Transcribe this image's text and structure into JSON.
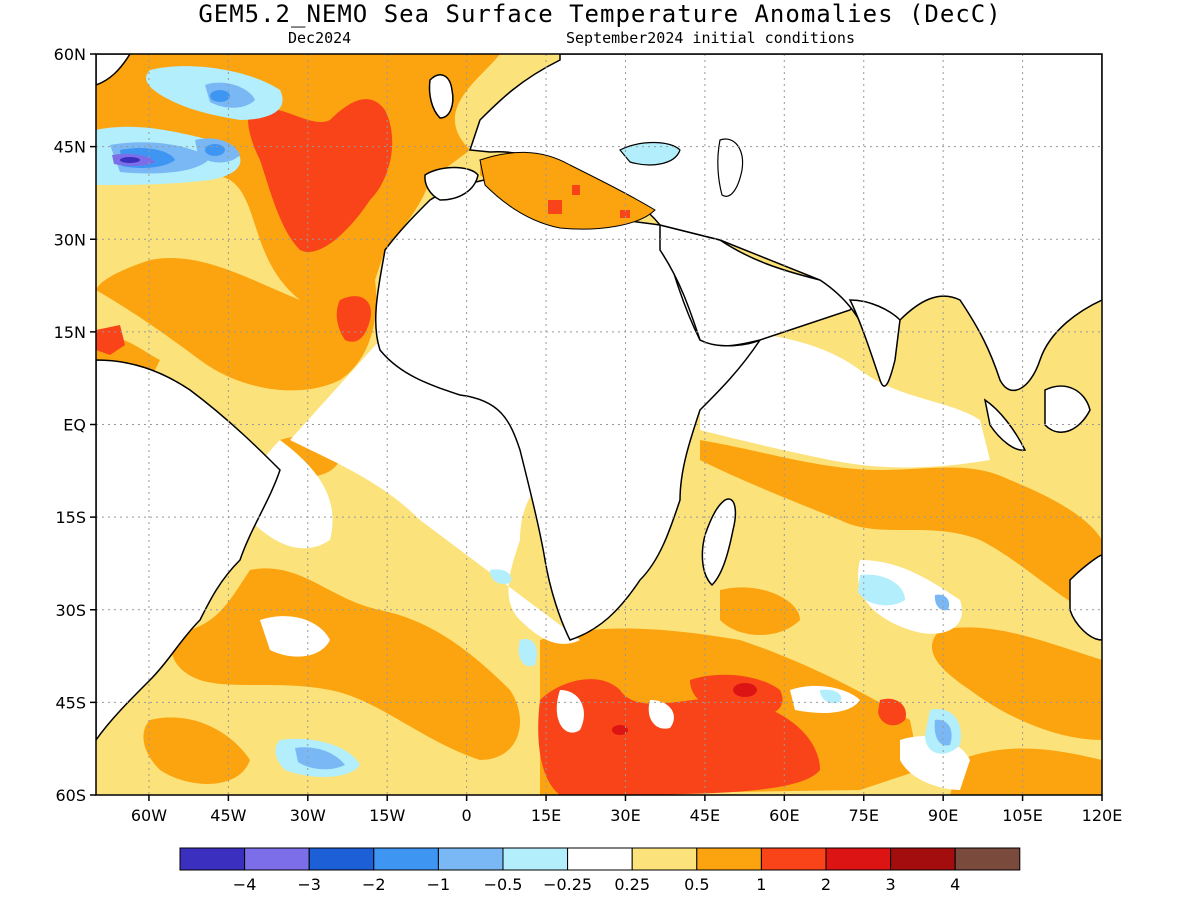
{
  "header": {
    "title": "GEM5.2_NEMO Sea Surface Temperature Anomalies (DecC)",
    "valid_month": "Dec2024",
    "init": "September2024 initial conditions"
  },
  "map": {
    "lon_range": [
      -70,
      120
    ],
    "lat_range": [
      -60,
      60
    ],
    "lat_ticks": [
      "60N",
      "45N",
      "30N",
      "15N",
      "EQ",
      "15S",
      "30S",
      "45S",
      "60S"
    ],
    "lon_ticks": [
      "60W",
      "45W",
      "30W",
      "15W",
      "0",
      "15E",
      "30E",
      "45E",
      "60E",
      "75E",
      "90E",
      "105E",
      "120E"
    ],
    "grid": "dotted"
  },
  "colorbar": {
    "colors": [
      "#3a2fbf",
      "#7b6ee8",
      "#1c5fd6",
      "#3f96f2",
      "#79b8f4",
      "#b2eefb",
      "#ffffff",
      "#fce27a",
      "#fba40f",
      "#f9441a",
      "#dd1414",
      "#a30d0d",
      "#7a4a3c"
    ],
    "labels": [
      "−4",
      "−3",
      "−2",
      "−1",
      "−0.5",
      "−0.25",
      "0.25",
      "0.5",
      "1",
      "2",
      "3",
      "4"
    ]
  },
  "palette": {
    "land": "#ffffff",
    "weak_warm": "#fce27a",
    "warm": "#fba40f",
    "hot": "#f9441a",
    "cool": "#b2eefb",
    "cold": "#79b8f4",
    "colder": "#3f96f2",
    "coldest": "#3a2fbf"
  }
}
